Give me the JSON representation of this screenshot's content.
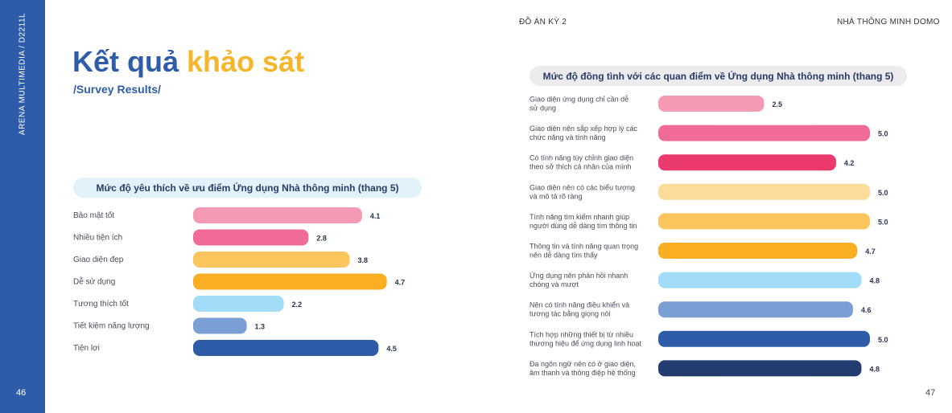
{
  "sidebar": {
    "vertical_text": "ARENA MULTIMEDIA / D2211L",
    "page_left": "46"
  },
  "header": {
    "left": "ĐỒ ÁN KỲ 2",
    "right": "NHÀ THÔNG MINH DOMO",
    "page_right": "47"
  },
  "title": {
    "part1": "Kết quả",
    "part2": "khảo sát",
    "subtitle": "/Survey Results/"
  },
  "colors": {
    "sidebar": "#2f5ca8",
    "title_blue": "#2f5ca8",
    "title_yellow": "#f7b52c"
  },
  "chart_data": [
    {
      "type": "bar",
      "orientation": "horizontal",
      "title": "Mức độ yêu thích về ưu điểm Ứng dụng Nhà thông minh (thang 5)",
      "categories": [
        "Bảo mật tốt",
        "Nhiều tiện ích",
        "Giao diện đẹp",
        "Dễ sử dụng",
        "Tương thích tốt",
        "Tiết kiệm năng lượng",
        "Tiện lợi"
      ],
      "values": [
        4.1,
        2.8,
        3.8,
        4.7,
        2.2,
        1.3,
        4.5
      ],
      "value_labels": [
        "4.1",
        "2.8",
        "3.8",
        "4.7",
        "2.2",
        "1.3",
        "4.5"
      ],
      "colors": [
        "#f59ab5",
        "#f06c96",
        "#fcc55e",
        "#f9ae23",
        "#a3dcf8",
        "#7a9fd5",
        "#2f5ca8"
      ],
      "xlim": [
        0,
        5
      ]
    },
    {
      "type": "bar",
      "orientation": "horizontal",
      "title": "Mức độ đồng tình với các quan điểm về Ứng dụng Nhà thông minh (thang 5)",
      "categories": [
        [
          "Giao diện ứng dụng chỉ cần dễ",
          "sử dụng"
        ],
        [
          "Giao diện nên sắp xếp hợp lý các",
          "chức năng và tính năng"
        ],
        [
          "Có tính năng tùy chỉnh giao diện",
          "theo sở thích cá nhân của mình"
        ],
        [
          "Giao diện nên có các biểu tượng",
          "và mô tả rõ ràng"
        ],
        [
          "Tính năng tìm kiếm nhanh giúp",
          "người dùng dễ dàng tìm thông tin"
        ],
        [
          "Thông tin và tính năng quan trọng",
          "nên dễ dàng tìm thấy"
        ],
        [
          "Ứng dụng nên phản hồi nhanh",
          "chóng và mượt"
        ],
        [
          "Nên có tính năng điều khiển và",
          "tương tác bằng giọng nói"
        ],
        [
          "Tích hợp những thiết bị từ nhiều",
          "thương hiệu để ứng dụng linh hoạt"
        ],
        [
          "Đa ngôn ngữ nên có ở giao diện,",
          "âm thanh và thông điệp hệ thống"
        ]
      ],
      "values": [
        2.5,
        5.0,
        4.2,
        5.0,
        5.0,
        4.7,
        4.8,
        4.6,
        5.0,
        4.8
      ],
      "value_labels": [
        "2.5",
        "5.0",
        "4.2",
        "5.0",
        "5.0",
        "4.7",
        "4.8",
        "4.6",
        "5.0",
        "4.8"
      ],
      "colors": [
        "#f59ab5",
        "#f06c96",
        "#eb3a6e",
        "#fddb99",
        "#fcc55e",
        "#f9ae23",
        "#a3dcf8",
        "#7a9fd5",
        "#2f5ca8",
        "#233c70"
      ],
      "xlim": [
        0,
        5
      ]
    }
  ]
}
